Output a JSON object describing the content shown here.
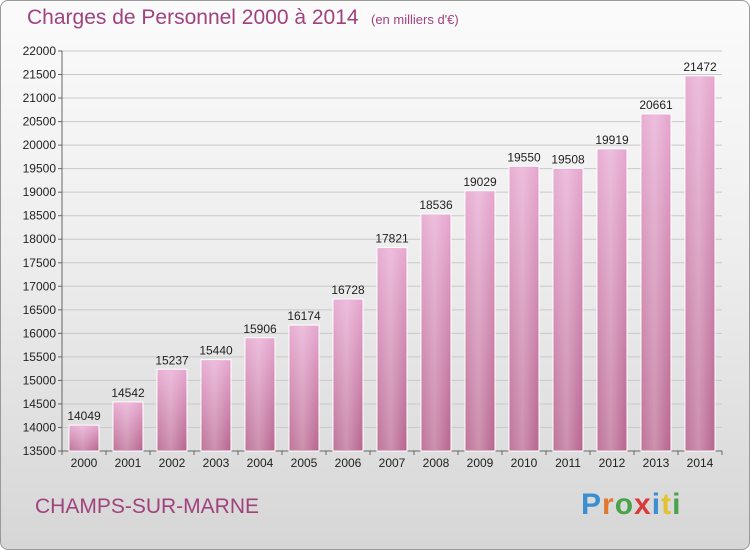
{
  "title": "Charges de Personnel 2000 à 2014",
  "subtitle": "(en milliers d'€)",
  "city": "CHAMPS-SUR-MARNE",
  "logo": [
    "P",
    "r",
    "o",
    "x",
    "i",
    "t",
    "i"
  ],
  "chart_data": {
    "type": "bar",
    "title": "Charges de Personnel 2000 à 2014",
    "subtitle": "(en milliers d'€)",
    "xlabel": "",
    "ylabel": "",
    "categories": [
      "2000",
      "2001",
      "2002",
      "2003",
      "2004",
      "2005",
      "2006",
      "2007",
      "2008",
      "2009",
      "2010",
      "2011",
      "2012",
      "2013",
      "2014"
    ],
    "values": [
      14049,
      14542,
      15237,
      15440,
      15906,
      16174,
      16728,
      17821,
      18536,
      19029,
      19550,
      19508,
      19919,
      20661,
      21472
    ],
    "ylim": [
      13500,
      22000
    ],
    "yticks": [
      13500,
      14000,
      14500,
      15000,
      15500,
      16000,
      16500,
      17000,
      17500,
      18000,
      18500,
      19000,
      19500,
      20000,
      20500,
      21000,
      21500,
      22000
    ],
    "grid": true,
    "bar_color": "#cc6fa9"
  }
}
